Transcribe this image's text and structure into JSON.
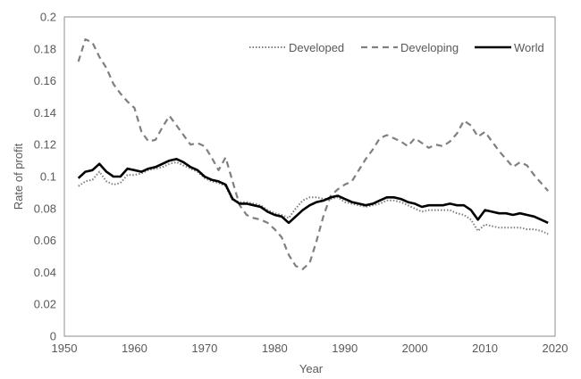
{
  "chart_data": {
    "type": "line",
    "title": "",
    "xlabel": "Year",
    "ylabel": "Rate of profit",
    "xlim": [
      1950,
      2020
    ],
    "ylim": [
      0,
      0.2
    ],
    "xticks": [
      "1950",
      "1960",
      "1970",
      "1980",
      "1990",
      "2000",
      "2010",
      "2020"
    ],
    "yticks": [
      "0",
      "0.02",
      "0.04",
      "0.06",
      "0.08",
      "0.1",
      "0.12",
      "0.14",
      "0.16",
      "0.18",
      "0.2"
    ],
    "legend_position": "top-right",
    "grid": false,
    "x": [
      1952,
      1953,
      1954,
      1955,
      1956,
      1957,
      1958,
      1959,
      1960,
      1961,
      1962,
      1963,
      1964,
      1965,
      1966,
      1967,
      1968,
      1969,
      1970,
      1971,
      1972,
      1973,
      1974,
      1975,
      1976,
      1977,
      1978,
      1979,
      1980,
      1981,
      1982,
      1983,
      1984,
      1985,
      1986,
      1987,
      1988,
      1989,
      1990,
      1991,
      1992,
      1993,
      1994,
      1995,
      1996,
      1997,
      1998,
      1999,
      2000,
      2001,
      2002,
      2003,
      2004,
      2005,
      2006,
      2007,
      2008,
      2009,
      2010,
      2011,
      2012,
      2013,
      2014,
      2015,
      2016,
      2017,
      2018,
      2019
    ],
    "series": [
      {
        "name": "Developed",
        "style": "dotted",
        "color": "#7f7f7f",
        "values": [
          0.094,
          0.097,
          0.098,
          0.103,
          0.097,
          0.095,
          0.096,
          0.101,
          0.101,
          0.102,
          0.104,
          0.105,
          0.106,
          0.108,
          0.109,
          0.107,
          0.105,
          0.103,
          0.099,
          0.097,
          0.096,
          0.094,
          0.085,
          0.084,
          0.084,
          0.083,
          0.082,
          0.079,
          0.077,
          0.076,
          0.074,
          0.08,
          0.085,
          0.087,
          0.087,
          0.086,
          0.086,
          0.087,
          0.084,
          0.083,
          0.082,
          0.081,
          0.082,
          0.083,
          0.085,
          0.085,
          0.084,
          0.082,
          0.08,
          0.078,
          0.079,
          0.079,
          0.079,
          0.079,
          0.077,
          0.076,
          0.073,
          0.066,
          0.07,
          0.069,
          0.068,
          0.068,
          0.068,
          0.068,
          0.067,
          0.067,
          0.066,
          0.064
        ]
      },
      {
        "name": "Developing",
        "style": "dashed",
        "color": "#7f7f7f",
        "values": [
          0.172,
          0.186,
          0.184,
          0.175,
          0.168,
          0.158,
          0.152,
          0.147,
          0.143,
          0.128,
          0.122,
          0.123,
          0.131,
          0.138,
          0.132,
          0.126,
          0.12,
          0.121,
          0.119,
          0.112,
          0.104,
          0.112,
          0.097,
          0.082,
          0.076,
          0.074,
          0.073,
          0.071,
          0.067,
          0.062,
          0.051,
          0.044,
          0.042,
          0.046,
          0.06,
          0.076,
          0.088,
          0.092,
          0.095,
          0.097,
          0.104,
          0.111,
          0.117,
          0.124,
          0.126,
          0.124,
          0.122,
          0.119,
          0.124,
          0.121,
          0.118,
          0.12,
          0.119,
          0.122,
          0.127,
          0.135,
          0.132,
          0.125,
          0.128,
          0.122,
          0.116,
          0.111,
          0.106,
          0.109,
          0.107,
          0.101,
          0.096,
          0.091
        ]
      },
      {
        "name": "World",
        "style": "solid",
        "color": "#000000",
        "values": [
          0.099,
          0.103,
          0.104,
          0.108,
          0.103,
          0.1,
          0.1,
          0.105,
          0.104,
          0.103,
          0.105,
          0.106,
          0.108,
          0.11,
          0.111,
          0.109,
          0.106,
          0.104,
          0.1,
          0.098,
          0.097,
          0.095,
          0.086,
          0.083,
          0.083,
          0.082,
          0.081,
          0.078,
          0.076,
          0.075,
          0.071,
          0.075,
          0.079,
          0.082,
          0.084,
          0.085,
          0.087,
          0.088,
          0.086,
          0.084,
          0.083,
          0.082,
          0.083,
          0.085,
          0.087,
          0.087,
          0.086,
          0.084,
          0.083,
          0.081,
          0.082,
          0.082,
          0.082,
          0.083,
          0.082,
          0.082,
          0.079,
          0.073,
          0.079,
          0.078,
          0.077,
          0.077,
          0.076,
          0.077,
          0.076,
          0.075,
          0.073,
          0.071
        ]
      }
    ]
  }
}
